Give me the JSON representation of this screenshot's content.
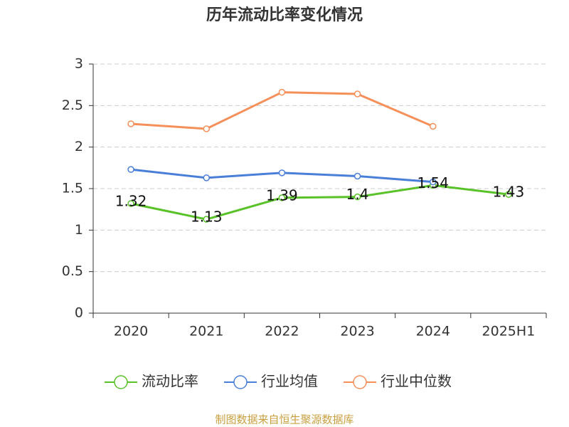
{
  "chart_data": {
    "type": "line",
    "title": "历年流动比率变化情况",
    "categories": [
      "2020",
      "2021",
      "2022",
      "2023",
      "2024",
      "2025H1"
    ],
    "series": [
      {
        "name": "流动比率",
        "color": "#5ac229",
        "values": [
          1.32,
          1.13,
          1.39,
          1.4,
          1.54,
          1.43
        ],
        "data_labels": true
      },
      {
        "name": "行业均值",
        "color": "#4a7fd8",
        "values": [
          1.73,
          1.63,
          1.69,
          1.65,
          1.58,
          null
        ]
      },
      {
        "name": "行业中位数",
        "color": "#f5905a",
        "values": [
          2.28,
          2.22,
          2.66,
          2.64,
          2.25,
          null
        ]
      }
    ],
    "ylim": [
      0,
      3
    ],
    "yticks": [
      0,
      0.5,
      1,
      1.5,
      2,
      2.5,
      3
    ],
    "grid": true,
    "legend": "bottom",
    "source": "制图数据来自恒生聚源数据库"
  }
}
